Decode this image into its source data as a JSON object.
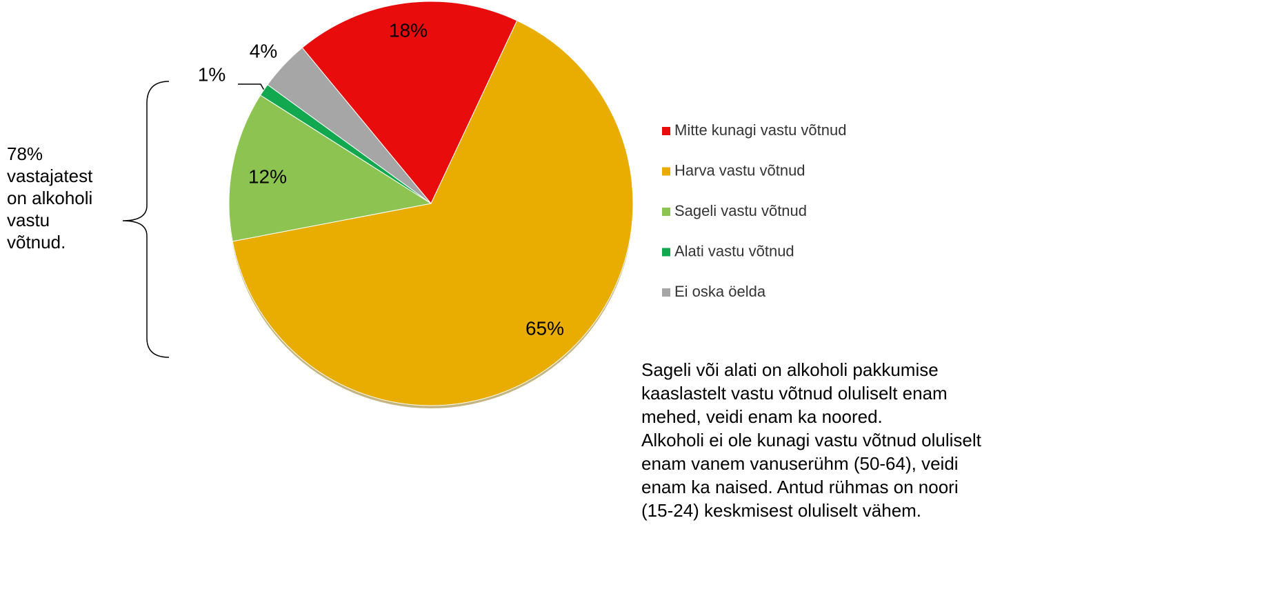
{
  "chart_data": {
    "type": "pie",
    "categories": [
      "Mitte kunagi vastu võtnud",
      "Harva vastu võtnud",
      "Sageli vastu võtnud",
      "Alati vastu võtnud",
      "Ei oska öelda"
    ],
    "values": [
      18,
      65,
      12,
      1,
      4
    ],
    "value_labels": [
      "18%",
      "65%",
      "12%",
      "1%",
      "4%"
    ],
    "colors": [
      "#e80c0c",
      "#e8ad00",
      "#8dc451",
      "#12a84f",
      "#a6a6a6"
    ],
    "legend": "right",
    "annotation": [
      "78%",
      "vastajatest",
      "on alkoholi",
      "vastu",
      "võtnud."
    ],
    "note": [
      "Sageli või alati on alkoholi pakkumise",
      "kaaslastelt vastu võtnud oluliselt enam",
      "mehed, veidi enam ka noored.",
      "Alkoholi ei ole kunagi vastu võtnud oluliselt",
      "enam vanem vanuserühm (50-64), veidi",
      "enam ka naised. Antud rühmas on noori",
      "(15-24) keskmisest oluliselt vähem."
    ]
  }
}
